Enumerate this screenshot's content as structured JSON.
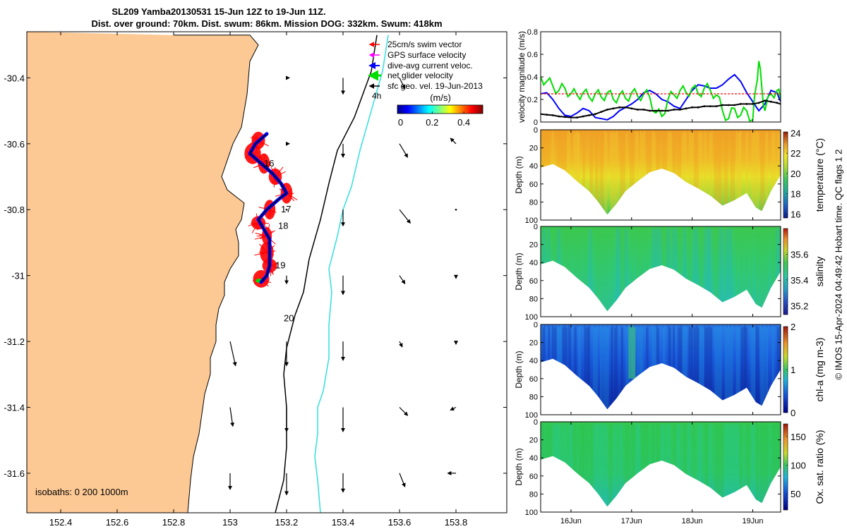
{
  "title_line1": "SL209 Yamba20130531 15-Jun 12Z to 19-Jun 11Z.",
  "title_line2": "Dist. over ground: 70km. Dist. swum: 86km. Mission DOG: 332km. Swum: 418km",
  "credit": "© IMOS 15-Apr-2024 04:49:42 Hobart time. QC flags 1  2",
  "colors": {
    "land": "#fcc995",
    "swim_vector": "#ff0000",
    "gps_velocity": "#ff00ff",
    "dive_avg": "#0000ff",
    "net_glider": "#00dd00",
    "sfc_geo": "#000000",
    "isobath_200": "#000000",
    "isobath_1000": "#33dddd"
  },
  "chart_data": [
    {
      "type": "map",
      "name": "track_map",
      "xlim": [
        152.28,
        153.98
      ],
      "ylim": [
        -31.72,
        -30.26
      ],
      "x_ticks": [
        "152.4",
        "152.6",
        "152.8",
        "153",
        "153.2",
        "153.4",
        "153.6",
        "153.8"
      ],
      "x_tick_values": [
        152.4,
        152.6,
        152.8,
        153.0,
        153.2,
        153.4,
        153.6,
        153.8
      ],
      "y_ticks": [
        "-30.4",
        "-30.6",
        "-30.8",
        "-31",
        "-31.2",
        "-31.4",
        "-31.6"
      ],
      "y_tick_values": [
        -30.4,
        -30.6,
        -30.8,
        -31.0,
        -31.2,
        -31.4,
        -31.6
      ],
      "legend": {
        "placement": "top-right",
        "entries": [
          "25cm/s swim vector",
          "GPS surface velocity",
          "dive-avg current veloc.",
          "net glider velocity",
          "sfc geo. vel. 19-Jun-2013"
        ]
      },
      "scale_arrow_label": "4h",
      "colorbar": {
        "label": "(m/s)",
        "ticks": [
          "0",
          "0.2",
          "0.4"
        ],
        "tick_values": [
          0,
          0.2,
          0.4
        ],
        "range": [
          -0.02,
          0.52
        ]
      },
      "isobath_label": "isobaths: 0   200  1000m",
      "day_labels": [
        {
          "text": "16",
          "lon": 153.12,
          "lat": -30.66
        },
        {
          "text": "17",
          "lon": 153.18,
          "lat": -30.8
        },
        {
          "text": "18",
          "lon": 153.17,
          "lat": -30.85
        },
        {
          "text": "19",
          "lon": 153.16,
          "lat": -30.97
        },
        {
          "text": "20",
          "lon": 153.19,
          "lat": -31.13
        }
      ],
      "coastline": [
        [
          152.8,
          -30.27
        ],
        [
          152.85,
          -30.27
        ],
        [
          153.07,
          -30.27
        ],
        [
          153.1,
          -30.3
        ],
        [
          153.07,
          -30.35
        ],
        [
          153.06,
          -30.45
        ],
        [
          153.05,
          -30.5
        ],
        [
          153.04,
          -30.55
        ],
        [
          153.01,
          -30.6
        ],
        [
          152.99,
          -30.65
        ],
        [
          152.97,
          -30.7
        ],
        [
          152.99,
          -30.74
        ],
        [
          153.05,
          -30.78
        ],
        [
          153.04,
          -30.83
        ],
        [
          153.02,
          -30.86
        ],
        [
          153.03,
          -30.9
        ],
        [
          153.03,
          -30.94
        ],
        [
          153.0,
          -30.98
        ],
        [
          152.98,
          -31.02
        ],
        [
          152.98,
          -31.06
        ],
        [
          152.96,
          -31.1
        ],
        [
          152.95,
          -31.15
        ],
        [
          152.95,
          -31.2
        ],
        [
          152.93,
          -31.25
        ],
        [
          152.93,
          -31.3
        ],
        [
          152.91,
          -31.36
        ],
        [
          152.9,
          -31.42
        ],
        [
          152.89,
          -31.48
        ],
        [
          152.87,
          -31.55
        ],
        [
          152.86,
          -31.62
        ],
        [
          152.85,
          -31.72
        ]
      ],
      "isobath_200m": [
        [
          153.52,
          -30.27
        ],
        [
          153.5,
          -30.38
        ],
        [
          153.44,
          -30.52
        ],
        [
          153.38,
          -30.62
        ],
        [
          153.35,
          -30.72
        ],
        [
          153.32,
          -30.83
        ],
        [
          153.28,
          -30.95
        ],
        [
          153.26,
          -31.05
        ],
        [
          153.23,
          -31.12
        ],
        [
          153.2,
          -31.22
        ],
        [
          153.19,
          -31.3
        ],
        [
          153.2,
          -31.4
        ],
        [
          153.2,
          -31.52
        ],
        [
          153.19,
          -31.62
        ],
        [
          153.16,
          -31.72
        ]
      ],
      "isobath_1000m": [
        [
          153.56,
          -30.27
        ],
        [
          153.54,
          -30.38
        ],
        [
          153.5,
          -30.5
        ],
        [
          153.46,
          -30.62
        ],
        [
          153.43,
          -30.73
        ],
        [
          153.4,
          -30.8
        ],
        [
          153.38,
          -30.88
        ],
        [
          153.35,
          -30.98
        ],
        [
          153.36,
          -31.05
        ],
        [
          153.35,
          -31.15
        ],
        [
          153.35,
          -31.25
        ],
        [
          153.33,
          -31.35
        ],
        [
          153.31,
          -31.4
        ],
        [
          153.31,
          -31.48
        ],
        [
          153.3,
          -31.55
        ],
        [
          153.31,
          -31.62
        ],
        [
          153.32,
          -31.72
        ]
      ],
      "glider_track": [
        [
          153.13,
          -30.57
        ],
        [
          153.09,
          -30.6
        ],
        [
          153.07,
          -30.63
        ],
        [
          153.11,
          -30.66
        ],
        [
          153.15,
          -30.69
        ],
        [
          153.18,
          -30.72
        ],
        [
          153.2,
          -30.75
        ],
        [
          153.17,
          -30.77
        ],
        [
          153.13,
          -30.8
        ],
        [
          153.1,
          -30.83
        ],
        [
          153.12,
          -30.86
        ],
        [
          153.14,
          -30.89
        ],
        [
          153.14,
          -30.93
        ],
        [
          153.14,
          -30.97
        ],
        [
          153.13,
          -31.0
        ],
        [
          153.11,
          -31.02
        ]
      ],
      "swim_vector_clusters": [
        {
          "lon": 153.1,
          "lat": -30.59
        },
        {
          "lon": 153.08,
          "lat": -30.63
        },
        {
          "lon": 153.12,
          "lat": -30.66
        },
        {
          "lon": 153.16,
          "lat": -30.7
        },
        {
          "lon": 153.2,
          "lat": -30.75
        },
        {
          "lon": 153.14,
          "lat": -30.8
        },
        {
          "lon": 153.1,
          "lat": -30.84
        },
        {
          "lon": 153.13,
          "lat": -30.88
        },
        {
          "lon": 153.13,
          "lat": -30.93
        },
        {
          "lon": 153.14,
          "lat": -30.97
        },
        {
          "lon": 153.11,
          "lat": -31.01
        }
      ],
      "geo_velocity_grid": {
        "lons": [
          153.0,
          153.2,
          153.4,
          153.6,
          153.8
        ],
        "lats": [
          -30.4,
          -30.6,
          -30.8,
          -31.0,
          -31.2,
          -31.4,
          -31.6
        ],
        "u": [
          [
            null,
            0.01,
            0.0,
            0.02,
            null
          ],
          [
            null,
            0.01,
            0.0,
            0.03,
            -0.02
          ],
          [
            null,
            0.0,
            0.0,
            0.04,
            0.0
          ],
          [
            null,
            0.0,
            0.0,
            0.02,
            0.0
          ],
          [
            0.02,
            0.0,
            0.0,
            0.01,
            0.0
          ],
          [
            0.01,
            0.0,
            0.0,
            0.03,
            -0.02
          ],
          [
            0.0,
            0.0,
            0.0,
            0.02,
            -0.03
          ]
        ],
        "v": [
          [
            null,
            0.0,
            -0.06,
            -0.04,
            null
          ],
          [
            null,
            0.0,
            -0.05,
            -0.05,
            0.02
          ],
          [
            null,
            0.0,
            -0.06,
            -0.05,
            0.0
          ],
          [
            null,
            -0.03,
            -0.07,
            -0.03,
            -0.01
          ],
          [
            -0.09,
            -0.09,
            -0.07,
            -0.02,
            -0.01
          ],
          [
            -0.07,
            -0.09,
            -0.09,
            -0.03,
            -0.01
          ],
          [
            -0.06,
            -0.08,
            -0.07,
            -0.05,
            0.0
          ]
        ]
      }
    },
    {
      "type": "line",
      "name": "velocity_magnitude",
      "ylabel": "velocity magnitude (m/s)",
      "ylim": [
        0,
        0.8
      ],
      "y_ticks": [
        "0",
        "0.2",
        "0.4",
        "0.6",
        "0.8"
      ],
      "y_tick_values": [
        0,
        0.2,
        0.4,
        0.6,
        0.8
      ],
      "xlim": [
        15.5,
        19.46
      ],
      "series": [
        {
          "color": "#0000ff",
          "style": "solid",
          "x": [
            15.5,
            15.6,
            15.7,
            15.8,
            15.9,
            16.0,
            16.1,
            16.2,
            16.3,
            16.4,
            16.5,
            16.6,
            16.7,
            16.8,
            16.9,
            17.0,
            17.1,
            17.2,
            17.3,
            17.4,
            17.5,
            17.6,
            17.7,
            17.8,
            17.9,
            18.0,
            18.1,
            18.2,
            18.3,
            18.4,
            18.5,
            18.6,
            18.7,
            18.8,
            18.9,
            19.0,
            19.1,
            19.2,
            19.3,
            19.4,
            19.46
          ],
          "values": [
            0.25,
            0.26,
            0.2,
            0.12,
            0.06,
            0.05,
            0.08,
            0.12,
            0.1,
            0.04,
            0.03,
            0.02,
            0.05,
            0.1,
            0.13,
            0.16,
            0.2,
            0.26,
            0.28,
            0.25,
            0.2,
            0.18,
            0.14,
            0.12,
            0.2,
            0.28,
            0.33,
            0.32,
            0.3,
            0.3,
            0.33,
            0.38,
            0.42,
            0.36,
            0.26,
            0.18,
            0.1,
            0.16,
            0.28,
            0.26,
            0.18
          ]
        },
        {
          "color": "#00dd00",
          "style": "solid",
          "x": [
            15.5,
            15.6,
            15.7,
            15.8,
            15.9,
            16.0,
            16.1,
            16.2,
            16.3,
            16.4,
            16.5,
            16.6,
            16.7,
            16.8,
            16.9,
            17.0,
            17.1,
            17.2,
            17.3,
            17.4,
            17.5,
            17.6,
            17.7,
            17.8,
            17.9,
            18.0,
            18.1,
            18.2,
            18.3,
            18.4,
            18.5,
            18.6,
            18.7,
            18.8,
            18.9,
            19.0,
            19.05,
            19.1,
            19.15,
            19.2,
            19.3,
            19.4,
            19.46
          ],
          "values": [
            0.4,
            0.36,
            0.32,
            0.28,
            0.3,
            0.25,
            0.24,
            0.26,
            0.22,
            0.25,
            0.22,
            0.26,
            0.2,
            0.24,
            0.21,
            0.26,
            0.23,
            0.25,
            0.22,
            0.08,
            0.05,
            0.2,
            0.24,
            0.28,
            0.26,
            0.3,
            0.25,
            0.3,
            0.28,
            0.24,
            0.1,
            0.03,
            0.12,
            0.06,
            0.1,
            0.02,
            0.3,
            0.54,
            0.3,
            0.1,
            0.25,
            0.28,
            0.2
          ]
        },
        {
          "color": "#000000",
          "style": "solid",
          "x": [
            15.5,
            15.6,
            15.7,
            15.8,
            15.9,
            16.0,
            16.1,
            16.2,
            16.3,
            16.4,
            16.5,
            16.6,
            16.7,
            16.8,
            16.9,
            17.0,
            17.1,
            17.2,
            17.3,
            17.4,
            17.5,
            17.6,
            17.7,
            17.8,
            17.9,
            18.0,
            18.1,
            18.2,
            18.3,
            18.4,
            18.5,
            18.6,
            18.7,
            18.8,
            18.9,
            19.0,
            19.1,
            19.2,
            19.3,
            19.4,
            19.46
          ],
          "values": [
            0.07,
            0.065,
            0.06,
            0.05,
            0.045,
            0.04,
            0.04,
            0.05,
            0.06,
            0.07,
            0.09,
            0.11,
            0.12,
            0.13,
            0.13,
            0.12,
            0.11,
            0.11,
            0.1,
            0.1,
            0.1,
            0.1,
            0.11,
            0.11,
            0.12,
            0.13,
            0.13,
            0.14,
            0.14,
            0.14,
            0.15,
            0.15,
            0.15,
            0.16,
            0.16,
            0.16,
            0.17,
            0.19,
            0.18,
            0.17,
            0.16
          ]
        },
        {
          "color": "#ff0000",
          "style": "dashed",
          "x": [
            15.5,
            19.46
          ],
          "values": [
            0.25,
            0.25
          ]
        }
      ]
    },
    {
      "type": "heatmap",
      "name": "temperature",
      "ylabel": "Depth (m)",
      "cbar_label": "temperature (°C)",
      "cbar_ticks": [
        "16",
        "18",
        "20",
        "22",
        "24"
      ],
      "cbar_tick_values": [
        16,
        18,
        20,
        22,
        24
      ],
      "ylim": [
        100,
        0
      ],
      "y_ticks": [
        "0",
        "20",
        "40",
        "60",
        "80",
        "100"
      ],
      "y_tick_values": [
        0,
        20,
        40,
        60,
        80,
        100
      ]
    },
    {
      "type": "heatmap",
      "name": "salinity",
      "ylabel": "Depth (m)",
      "cbar_label": "salinity",
      "cbar_ticks": [
        "35.2",
        "35.4",
        "35.6"
      ],
      "cbar_tick_values": [
        35.2,
        35.4,
        35.6
      ],
      "ylim": [
        100,
        0
      ],
      "y_ticks": [
        "0",
        "20",
        "40",
        "60",
        "80",
        "100"
      ],
      "y_tick_values": [
        0,
        20,
        40,
        60,
        80,
        100
      ]
    },
    {
      "type": "heatmap",
      "name": "chl_a",
      "ylabel": "Depth (m)",
      "cbar_label": "chl-a (mg m-3)",
      "cbar_ticks": [
        "0",
        "1",
        "2"
      ],
      "cbar_tick_values": [
        0,
        1,
        2
      ],
      "ylim": [
        100,
        0
      ],
      "y_ticks": [
        "0",
        "20",
        "40",
        "60",
        "80",
        "100"
      ],
      "y_tick_values": [
        0,
        20,
        40,
        60,
        80,
        100
      ]
    },
    {
      "type": "heatmap",
      "name": "oxygen",
      "ylabel": "Depth (m)",
      "cbar_label": "Ox. sat. ratio (%)",
      "cbar_ticks": [
        "50",
        "100",
        "150"
      ],
      "cbar_tick_values": [
        50,
        100,
        150
      ],
      "ylim": [
        100,
        0
      ],
      "y_ticks": [
        "0",
        "20",
        "40",
        "60",
        "80",
        "100"
      ],
      "y_tick_values": [
        0,
        20,
        40,
        60,
        80,
        100
      ],
      "x_ticks": [
        "16Jun",
        "17Jun",
        "18Jun",
        "19Jun"
      ],
      "x_tick_values": [
        16.0,
        17.0,
        18.0,
        19.0
      ]
    }
  ],
  "section_bottom_depth": {
    "days": [
      15.5,
      15.7,
      15.9,
      16.1,
      16.3,
      16.45,
      16.6,
      16.75,
      16.9,
      17.1,
      17.3,
      17.5,
      17.7,
      17.9,
      18.1,
      18.3,
      18.5,
      18.7,
      18.9,
      19.05,
      19.15,
      19.3,
      19.46
    ],
    "depth": [
      42,
      38,
      45,
      57,
      68,
      80,
      94,
      82,
      68,
      57,
      47,
      43,
      48,
      58,
      65,
      73,
      84,
      78,
      70,
      86,
      90,
      68,
      50
    ]
  }
}
